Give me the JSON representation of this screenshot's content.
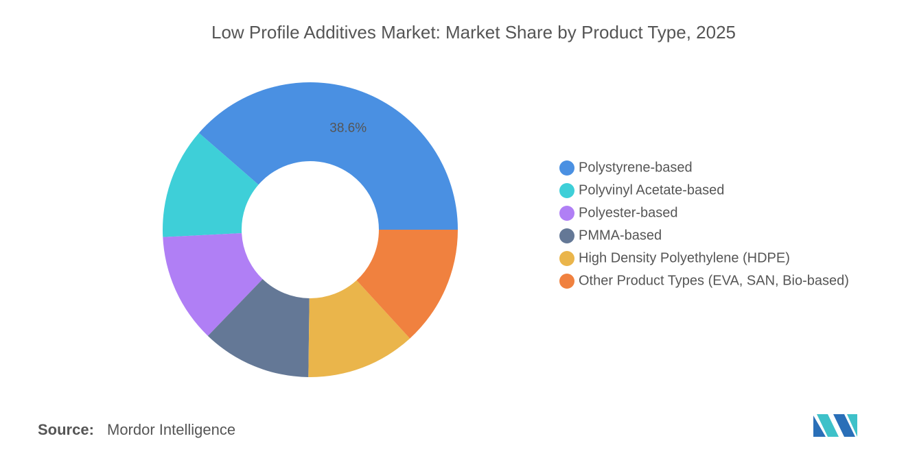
{
  "chart_data": {
    "type": "donut",
    "title": "Low Profile Additives Market: Market Share by Product Type, 2025",
    "categories": [
      "Polystyrene-based",
      "Polyvinyl Acetate-based",
      "Polyester-based",
      "PMMA-based",
      "High Density Polyethylene (HDPE)",
      "Other Product Types (EVA, SAN, Bio-based)"
    ],
    "values": [
      38.6,
      12.2,
      12,
      12,
      12,
      13.2
    ],
    "value_labels": [
      "38.6%",
      null,
      null,
      null,
      null,
      null
    ],
    "colors": [
      "#4a90e2",
      "#3ecfd8",
      "#b07ff5",
      "#647896",
      "#eab54b",
      "#f0813f"
    ],
    "legend": "right"
  },
  "footer": {
    "source_label": "Source:",
    "source": "Mordor Intelligence"
  }
}
